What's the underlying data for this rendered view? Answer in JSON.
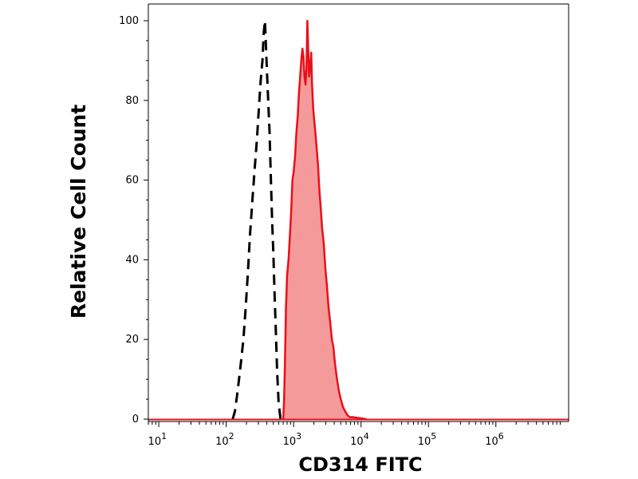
{
  "chart_data": {
    "type": "area",
    "xlabel": "CD314 FITC",
    "ylabel": "Relative Cell Count",
    "xscale": "log",
    "xlim": [
      7,
      12000000
    ],
    "ylim": [
      0,
      100
    ],
    "yticks": [
      0,
      20,
      40,
      60,
      80,
      100
    ],
    "xticks": [
      {
        "value": 10,
        "base": "10",
        "exp": "1"
      },
      {
        "value": 100,
        "base": "10",
        "exp": "2"
      },
      {
        "value": 1000,
        "base": "10",
        "exp": "3"
      },
      {
        "value": 10000,
        "base": "10",
        "exp": "4"
      },
      {
        "value": 100000,
        "base": "10",
        "exp": "5"
      },
      {
        "value": 1000000,
        "base": "10",
        "exp": "6"
      }
    ],
    "series": [
      {
        "style": "dashed",
        "color": "#000000",
        "fill": "none",
        "x": [
          125,
          135,
          145,
          155,
          165,
          180,
          195,
          210,
          225,
          245,
          265,
          285,
          305,
          325,
          345,
          360,
          375,
          390,
          405,
          420,
          440,
          460,
          480,
          500,
          520,
          545,
          570,
          600,
          640
        ],
        "y": [
          0,
          2,
          6,
          10,
          14,
          20,
          28,
          37,
          46,
          55,
          63,
          70,
          78,
          85,
          90,
          97,
          100,
          93,
          86,
          80,
          72,
          60,
          50,
          42,
          32,
          22,
          12,
          4,
          0
        ]
      },
      {
        "style": "solid",
        "color": "#e8101a",
        "fill": "#f59a9a",
        "x": [
          700,
          720,
          740,
          770,
          800,
          840,
          880,
          920,
          960,
          1000,
          1050,
          1100,
          1150,
          1200,
          1250,
          1300,
          1350,
          1400,
          1450,
          1500,
          1550,
          1600,
          1650,
          1700,
          1760,
          1820,
          1880,
          1950,
          2000,
          2100,
          2200,
          2300,
          2400,
          2500,
          2650,
          2800,
          2950,
          3100,
          3300,
          3500,
          3700,
          3900,
          4100,
          4400,
          4700,
          5000,
          5400,
          5800,
          6300,
          6800,
          7500,
          9000,
          12000
        ],
        "y": [
          0,
          4,
          12,
          28,
          36,
          40,
          46,
          52,
          60,
          62,
          66,
          72,
          76,
          82,
          86,
          90,
          93,
          91,
          86,
          84,
          88,
          100,
          92,
          86,
          88,
          92,
          84,
          78,
          76,
          72,
          68,
          64,
          58,
          54,
          48,
          44,
          38,
          34,
          28,
          24,
          20,
          18,
          14,
          10,
          7,
          5,
          3,
          2,
          1,
          0.5,
          0.5,
          0.3,
          0
        ]
      }
    ]
  }
}
